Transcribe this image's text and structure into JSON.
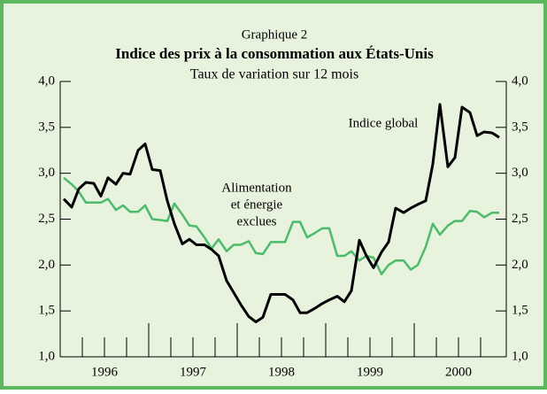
{
  "chart_data": {
    "type": "line",
    "title": "Graphique 2",
    "subtitle": "Indice des prix à la consommation aux États-Unis",
    "subtitle2": "Taux de variation sur 12 mois",
    "annotations": [
      {
        "text": "Indice global",
        "series": 0
      },
      {
        "text": "Alimentation",
        "series": 1
      },
      {
        "text": "et énergie",
        "series": 1
      },
      {
        "text": "exclues",
        "series": 1
      }
    ],
    "x": [
      1996.04,
      1996.13,
      1996.21,
      1996.29,
      1996.38,
      1996.46,
      1996.54,
      1996.63,
      1996.71,
      1996.79,
      1996.88,
      1996.96,
      1997.04,
      1997.13,
      1997.21,
      1997.29,
      1997.38,
      1997.46,
      1997.54,
      1997.63,
      1997.71,
      1997.79,
      1997.88,
      1997.96,
      1998.04,
      1998.13,
      1998.21,
      1998.29,
      1998.38,
      1998.46,
      1998.54,
      1998.63,
      1998.71,
      1998.79,
      1998.88,
      1998.96,
      1999.04,
      1999.13,
      1999.21,
      1999.29,
      1999.38,
      1999.46,
      1999.54,
      1999.63,
      1999.71,
      1999.79,
      1999.88,
      1999.96,
      2000.04,
      2000.13,
      2000.21,
      2000.29,
      2000.38,
      2000.46,
      2000.54,
      2000.63,
      2000.71,
      2000.79,
      2000.88,
      2000.96
    ],
    "series": [
      {
        "name": "Indice global",
        "color": "#000000",
        "width": 3,
        "values": [
          2.72,
          2.63,
          2.83,
          2.9,
          2.89,
          2.75,
          2.95,
          2.88,
          3.0,
          2.99,
          3.25,
          3.32,
          3.04,
          3.03,
          2.7,
          2.45,
          2.23,
          2.28,
          2.22,
          2.22,
          2.17,
          2.1,
          1.83,
          1.7,
          1.57,
          1.44,
          1.38,
          1.43,
          1.68,
          1.68,
          1.68,
          1.62,
          1.48,
          1.48,
          1.53,
          1.58,
          1.62,
          1.66,
          1.6,
          1.72,
          2.27,
          2.1,
          1.97,
          2.14,
          2.25,
          2.62,
          2.57,
          2.62,
          2.66,
          2.7,
          3.1,
          3.75,
          3.07,
          3.17,
          3.72,
          3.66,
          3.41,
          3.45,
          3.44,
          3.39
        ]
      },
      {
        "name": "Alimentation et énergie exclues",
        "color": "#4cbb6c",
        "width": 2.5,
        "values": [
          2.95,
          2.88,
          2.8,
          2.68,
          2.68,
          2.68,
          2.72,
          2.6,
          2.65,
          2.58,
          2.58,
          2.65,
          2.5,
          2.49,
          2.48,
          2.67,
          2.55,
          2.43,
          2.42,
          2.3,
          2.18,
          2.28,
          2.15,
          2.22,
          2.22,
          2.26,
          2.13,
          2.12,
          2.25,
          2.25,
          2.25,
          2.47,
          2.47,
          2.3,
          2.35,
          2.4,
          2.4,
          2.1,
          2.1,
          2.15,
          2.05,
          2.1,
          2.08,
          1.9,
          2.0,
          2.05,
          2.05,
          1.95,
          2.0,
          2.2,
          2.45,
          2.33,
          2.43,
          2.48,
          2.48,
          2.59,
          2.58,
          2.52,
          2.57,
          2.57
        ]
      }
    ],
    "xlim": [
      1996,
      2001.04
    ],
    "xticks": [
      {
        "value": 1996.5,
        "label": "1996"
      },
      {
        "value": 1997.5,
        "label": "1997"
      },
      {
        "value": 1998.5,
        "label": "1998"
      },
      {
        "value": 1999.5,
        "label": "1999"
      },
      {
        "value": 2000.5,
        "label": "2000"
      }
    ],
    "xtick_marks": [
      1996.25,
      1996.5,
      1996.75,
      1997,
      1997.25,
      1997.5,
      1997.75,
      1998,
      1998.25,
      1998.5,
      1998.75,
      1999,
      1999.25,
      1999.5,
      1999.75,
      2000,
      2000.25,
      2000.5,
      2000.75
    ],
    "ylim": [
      1,
      4
    ],
    "yticks": [
      {
        "value": 1,
        "label": "1,0"
      },
      {
        "value": 1.5,
        "label": "1,5"
      },
      {
        "value": 2,
        "label": "2,0"
      },
      {
        "value": 2.5,
        "label": "2,5"
      },
      {
        "value": 3,
        "label": "3,0"
      },
      {
        "value": 3.5,
        "label": "3,5"
      },
      {
        "value": 4,
        "label": "4,0"
      }
    ],
    "right_axis": true
  }
}
